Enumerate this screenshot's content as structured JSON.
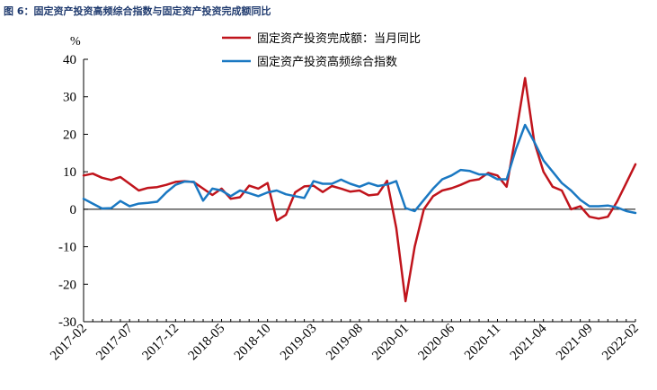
{
  "figure_title": "图 6：固定资产投资高频综合指数与固定资产投资完成额同比",
  "chart_data": {
    "type": "line",
    "title": "图 6：固定资产投资高频综合指数与固定资产投资完成额同比",
    "unit_label": "%",
    "ylim": [
      -30,
      40
    ],
    "y_ticks": [
      -30,
      -20,
      -10,
      0,
      10,
      20,
      30,
      40
    ],
    "x_tick_labels": [
      "2017-02",
      "2017-07",
      "2017-12",
      "2018-05",
      "2018-10",
      "2019-03",
      "2019-08",
      "2020-01",
      "2020-06",
      "2020-11",
      "2021-04",
      "2021-09",
      "2022-02"
    ],
    "x": [
      "2017-02",
      "2017-03",
      "2017-04",
      "2017-05",
      "2017-06",
      "2017-07",
      "2017-08",
      "2017-09",
      "2017-10",
      "2017-11",
      "2017-12",
      "2018-01",
      "2018-02",
      "2018-03",
      "2018-04",
      "2018-05",
      "2018-06",
      "2018-07",
      "2018-08",
      "2018-09",
      "2018-10",
      "2018-11",
      "2018-12",
      "2019-01",
      "2019-02",
      "2019-03",
      "2019-04",
      "2019-05",
      "2019-06",
      "2019-07",
      "2019-08",
      "2019-09",
      "2019-10",
      "2019-11",
      "2019-12",
      "2020-01",
      "2020-02",
      "2020-03",
      "2020-04",
      "2020-05",
      "2020-06",
      "2020-07",
      "2020-08",
      "2020-09",
      "2020-10",
      "2020-11",
      "2020-12",
      "2021-01",
      "2021-02",
      "2021-03",
      "2021-04",
      "2021-05",
      "2021-06",
      "2021-07",
      "2021-08",
      "2021-09",
      "2021-10",
      "2021-11",
      "2021-12",
      "2022-01",
      "2022-02"
    ],
    "grid": false,
    "legend_position": "top-center",
    "series": [
      {
        "name": "固定资产投资完成额：当月同比",
        "color": "#c0141c",
        "values": [
          9.0,
          9.5,
          8.4,
          7.8,
          8.6,
          6.8,
          5.0,
          5.7,
          5.9,
          6.5,
          7.3,
          7.5,
          7.2,
          5.5,
          3.8,
          5.5,
          2.8,
          3.2,
          6.3,
          5.5,
          7.0,
          -3.0,
          -1.5,
          4.5,
          6.1,
          6.3,
          4.6,
          6.2,
          5.5,
          4.7,
          5.0,
          3.7,
          4.0,
          7.6,
          -5.0,
          -24.5,
          -10.0,
          0.0,
          3.5,
          5.0,
          5.6,
          6.5,
          7.6,
          8.0,
          9.7,
          9.0,
          6.0,
          20.0,
          35.0,
          18.0,
          10.0,
          6.0,
          5.0,
          0.0,
          0.8,
          -2.0,
          -2.5,
          -2.0,
          2.0,
          7.0,
          12.0
        ]
      },
      {
        "name": "固定资产投资高频综合指数",
        "color": "#1a78c2",
        "values": [
          2.8,
          1.5,
          0.2,
          0.3,
          2.2,
          0.8,
          1.5,
          1.7,
          2.0,
          4.5,
          6.5,
          7.4,
          7.3,
          2.3,
          5.5,
          5.0,
          3.5,
          5.0,
          4.3,
          3.5,
          4.5,
          5.0,
          4.0,
          3.5,
          3.0,
          7.5,
          6.8,
          6.8,
          7.9,
          6.8,
          6.0,
          7.0,
          6.2,
          6.6,
          7.5,
          0.3,
          -0.5,
          2.5,
          5.5,
          8.0,
          9.0,
          10.5,
          10.2,
          9.3,
          9.3,
          8.0,
          8.0,
          16.0,
          22.5,
          18.0,
          13.0,
          10.0,
          7.0,
          5.0,
          2.5,
          0.8,
          0.8,
          1.0,
          0.5,
          -0.5,
          -1.0
        ]
      }
    ]
  }
}
